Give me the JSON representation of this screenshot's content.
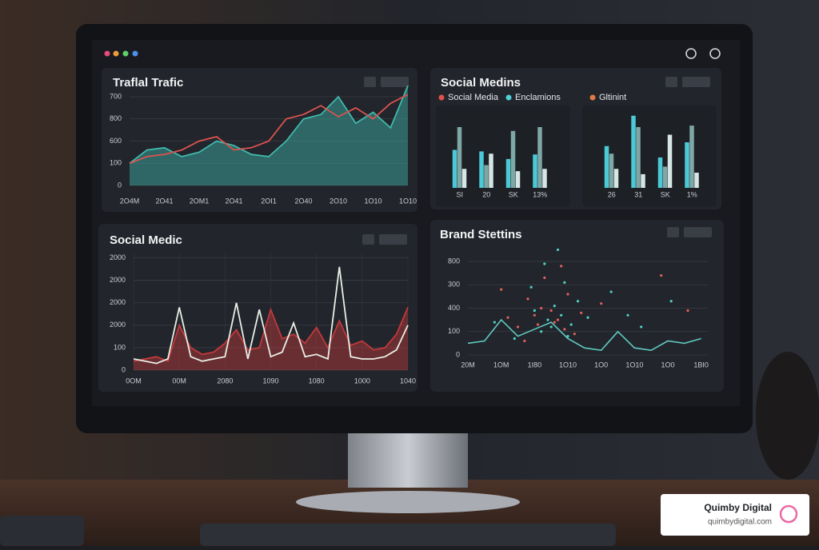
{
  "chart_data": [
    {
      "type": "line",
      "title": "Traflal Trafic",
      "grid": true,
      "categories": [
        "2O4M",
        null,
        "2O41",
        null,
        "2OM1",
        null,
        "2O41",
        null,
        "2OI1",
        null,
        "2O40",
        null,
        "2O10",
        null,
        "1O10",
        null,
        "1O10"
      ],
      "ylim": [
        0,
        4.7
      ],
      "yticks": [
        {
          "value": 0,
          "label": "0"
        },
        {
          "value": 1,
          "label": "100"
        },
        {
          "value": 2,
          "label": "600"
        },
        {
          "value": 3,
          "label": "800"
        },
        {
          "value": 4,
          "label": "700"
        }
      ],
      "series": [
        {
          "color": "#3fb8ac",
          "fill": true,
          "values": [
            1.0,
            1.6,
            1.7,
            1.3,
            1.5,
            2.0,
            1.8,
            1.4,
            1.3,
            2.0,
            3.0,
            3.2,
            4.0,
            2.8,
            3.3,
            2.6,
            4.5
          ]
        },
        {
          "color": "#d9534f",
          "fill": false,
          "values": [
            1.0,
            1.3,
            1.4,
            1.6,
            2.0,
            2.2,
            1.6,
            1.7,
            2.0,
            3.0,
            3.2,
            3.6,
            3.1,
            3.5,
            3.0,
            3.7,
            4.1
          ]
        }
      ]
    },
    {
      "type": "bar",
      "title": "Social Medins",
      "legend": [
        {
          "name": "Social Media",
          "color": "#e0524f"
        },
        {
          "name": "Enclamions",
          "color": "#4fd1d9"
        },
        {
          "name": "Gltinint",
          "color": "#e07b45"
        }
      ],
      "categories": [
        "SI",
        "20",
        "SK",
        "13%",
        "26",
        "31",
        "SK",
        "1%"
      ],
      "ylim": [
        0,
        100
      ],
      "series": [
        {
          "color": "#4cc9d6",
          "values": [
            50,
            48,
            38,
            44,
            55,
            95,
            40,
            60
          ]
        },
        {
          "color": "#7fa7a6",
          "values": [
            80,
            30,
            75,
            80,
            45,
            80,
            28,
            82
          ]
        },
        {
          "color": "#d6e6e4",
          "values": [
            25,
            45,
            22,
            25,
            25,
            18,
            70,
            20
          ]
        }
      ]
    },
    {
      "type": "line",
      "title": "Social Medic",
      "grid": true,
      "categories": [
        "0OM",
        null,
        null,
        null,
        "00M",
        null,
        null,
        null,
        "2080",
        null,
        null,
        null,
        "1090",
        null,
        null,
        null,
        "1080",
        null,
        null,
        null,
        "1000",
        null,
        null,
        null,
        "1040"
      ],
      "ylim": [
        0,
        5.2
      ],
      "yticks": [
        {
          "value": 0,
          "label": "0"
        },
        {
          "value": 1,
          "label": "100"
        },
        {
          "value": 2,
          "label": "2000"
        },
        {
          "value": 3,
          "label": "2000"
        },
        {
          "value": 4,
          "label": "2000"
        },
        {
          "value": 5,
          "label": "2000"
        }
      ],
      "series": [
        {
          "color": "#c0393b",
          "fill": true,
          "values": [
            0.4,
            0.5,
            0.6,
            0.4,
            2.0,
            1.0,
            0.7,
            0.8,
            1.2,
            1.8,
            0.9,
            1.0,
            2.7,
            1.4,
            1.6,
            1.2,
            1.9,
            1.0,
            2.2,
            1.1,
            1.3,
            0.9,
            1.0,
            1.6,
            2.8
          ]
        },
        {
          "color": "#e8efe6",
          "fill": false,
          "values": [
            0.5,
            0.4,
            0.3,
            0.5,
            2.8,
            0.6,
            0.4,
            0.5,
            0.6,
            3.0,
            0.5,
            2.7,
            0.6,
            0.8,
            2.1,
            0.6,
            0.7,
            0.5,
            4.6,
            0.6,
            0.5,
            0.5,
            0.6,
            0.9,
            2.0
          ]
        }
      ]
    },
    {
      "type": "scatter",
      "title": "Brand Stettins",
      "grid": true,
      "xlim": [
        0,
        7.2
      ],
      "xticks": [
        {
          "value": 0,
          "label": "20M"
        },
        {
          "value": 1,
          "label": "1OM"
        },
        {
          "value": 2,
          "label": "1I80"
        },
        {
          "value": 3,
          "label": "1O10"
        },
        {
          "value": 4,
          "label": "1O0"
        },
        {
          "value": 5,
          "label": "1O10"
        },
        {
          "value": 6,
          "label": "1O0"
        },
        {
          "value": 7,
          "label": "1BI0"
        }
      ],
      "ylim": [
        0,
        4.6
      ],
      "yticks": [
        {
          "value": 0,
          "label": "0"
        },
        {
          "value": 1,
          "label": "100"
        },
        {
          "value": 2,
          "label": "400"
        },
        {
          "value": 3,
          "label": "300"
        },
        {
          "value": 4,
          "label": "800"
        }
      ],
      "series": [
        {
          "color": "#e0605c",
          "style": "points",
          "x": [
            1.2,
            1.8,
            2.1,
            2.5,
            2.7,
            3.0,
            2.3,
            1.5,
            3.4,
            2.9,
            2.2,
            4.0,
            1.0,
            2.6,
            5.8,
            3.2,
            2.0,
            6.6,
            1.7,
            2.8
          ],
          "values": [
            1.6,
            2.4,
            1.3,
            1.9,
            1.5,
            2.6,
            3.3,
            1.2,
            1.8,
            1.1,
            2.0,
            2.2,
            2.8,
            1.4,
            3.4,
            0.9,
            1.7,
            1.9,
            0.6,
            3.8
          ]
        },
        {
          "color": "#4fd1c4",
          "style": "points",
          "x": [
            2.4,
            2.6,
            2.8,
            3.1,
            2.2,
            1.9,
            3.3,
            2.7,
            2.5,
            3.6,
            1.4,
            4.3,
            2.9,
            2.0,
            5.2,
            3.0,
            0.8,
            2.3,
            4.8,
            6.1
          ],
          "values": [
            1.5,
            2.1,
            1.7,
            1.3,
            1.0,
            2.9,
            2.3,
            4.5,
            1.2,
            1.6,
            0.7,
            2.7,
            3.1,
            1.9,
            1.2,
            0.8,
            1.4,
            3.9,
            1.7,
            2.3
          ]
        },
        {
          "color": "#5fc9c0",
          "style": "line",
          "x": [
            0,
            0.5,
            1,
            1.5,
            2,
            2.5,
            3,
            3.5,
            4,
            4.5,
            5,
            5.5,
            6,
            6.5,
            7
          ],
          "values": [
            0.5,
            0.6,
            1.5,
            0.8,
            1.1,
            1.4,
            0.7,
            0.3,
            0.2,
            1.0,
            0.3,
            0.2,
            0.6,
            0.5,
            0.7
          ]
        }
      ]
    }
  ],
  "brand": {
    "name": "Quimby Digital",
    "url": "quimbydigital.com"
  }
}
